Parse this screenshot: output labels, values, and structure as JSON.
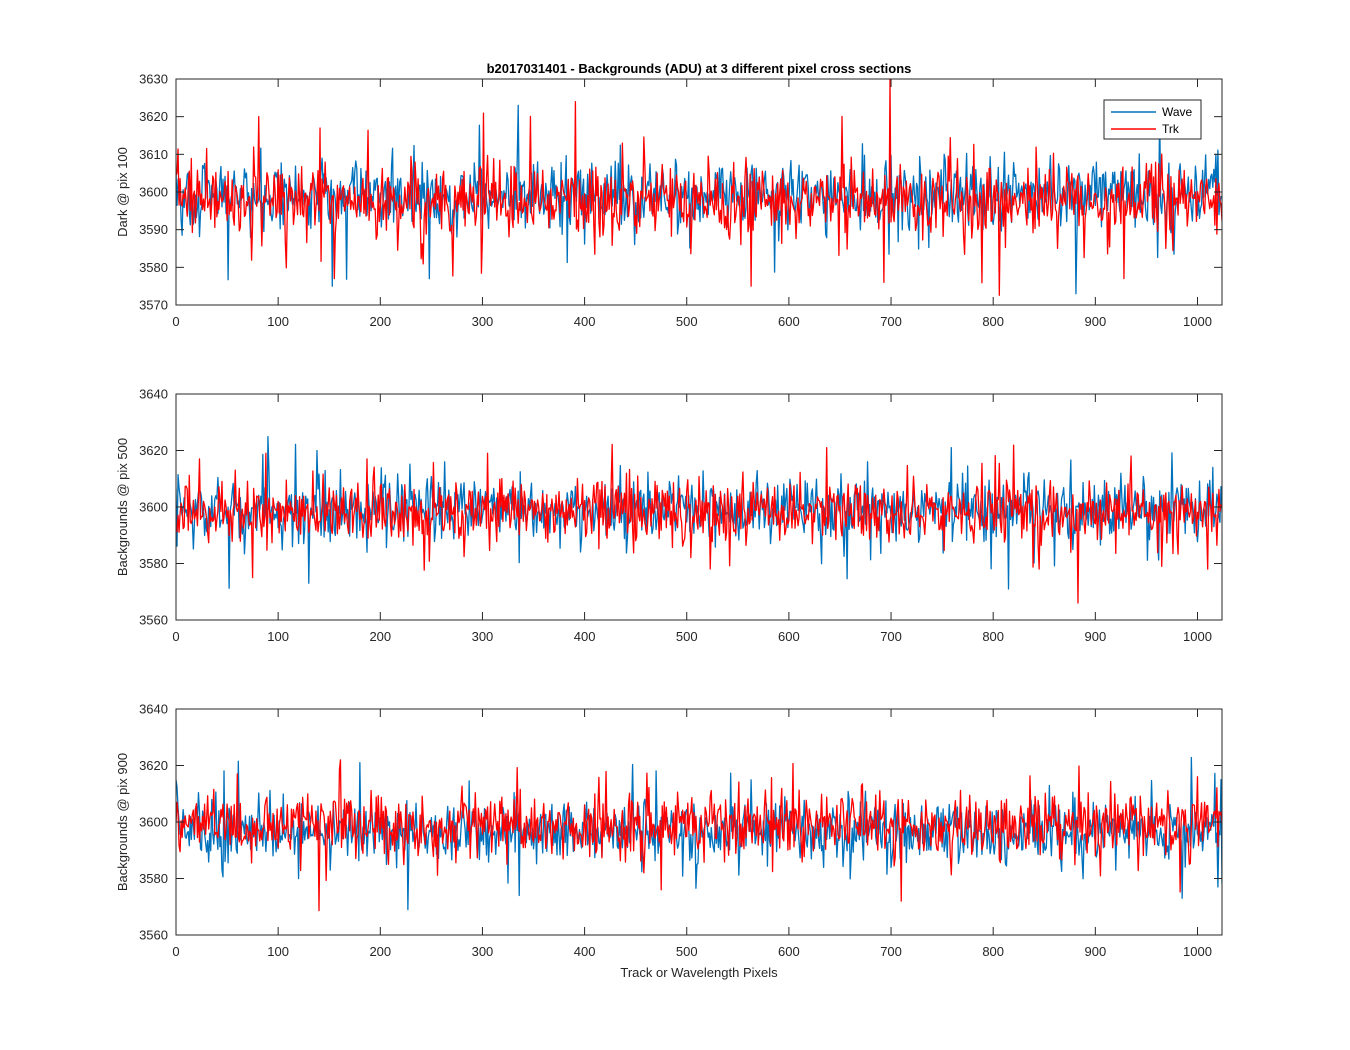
{
  "chart_data": {
    "type": "line",
    "title": "b2017031401 - Backgrounds (ADU) at 3 different pixel cross sections",
    "xlabel": "Track or Wavelength Pixels",
    "legend": {
      "placement": "top-right",
      "entries": [
        "Wave",
        "Trk"
      ]
    },
    "colors": {
      "Wave": "#0072bd",
      "Trk": "#ff0000"
    },
    "x": {
      "range": [
        0,
        1024
      ],
      "ticks": [
        0,
        100,
        200,
        300,
        400,
        500,
        600,
        700,
        800,
        900,
        1000
      ]
    },
    "note": "Each series is dense noise; representative values are generated from the stated mean, spread and listed outliers.",
    "panels": [
      {
        "ylabel": "Dark @ pix 100",
        "ylim": [
          3570,
          3630
        ],
        "yticks": [
          3570,
          3580,
          3590,
          3600,
          3610,
          3620,
          3630
        ],
        "series": [
          {
            "name": "Wave",
            "mean": 3599,
            "spread": 5.5,
            "outliers": [
              [
                153,
                3575
              ],
              [
                248,
                3577
              ],
              [
                335,
                3623
              ],
              [
                881,
                3573
              ],
              [
                963,
                3621
              ],
              [
                1018,
                3610
              ]
            ]
          },
          {
            "name": "Trk",
            "mean": 3598,
            "spread": 5.5,
            "outliers": [
              [
                81,
                3620
              ],
              [
                141,
                3617
              ],
              [
                155,
                3577
              ],
              [
                391,
                3624
              ],
              [
                563,
                3575
              ],
              [
                699,
                3630
              ],
              [
                693,
                3576
              ],
              [
                928,
                3577
              ]
            ]
          }
        ]
      },
      {
        "ylabel": "Backgrounds @ pix 500",
        "ylim": [
          3560,
          3640
        ],
        "yticks": [
          3560,
          3580,
          3600,
          3620,
          3640
        ],
        "series": [
          {
            "name": "Wave",
            "mean": 3599,
            "spread": 6.5,
            "outliers": [
              [
                130,
                3573
              ],
              [
                138,
                3620
              ],
              [
                759,
                3621
              ],
              [
                815,
                3571
              ],
              [
                1015,
                3614
              ]
            ]
          },
          {
            "name": "Trk",
            "mean": 3598,
            "spread": 6.5,
            "outliers": [
              [
                75,
                3575
              ],
              [
                88,
                3619
              ],
              [
                305,
                3619
              ],
              [
                637,
                3621
              ],
              [
                883,
                3566
              ],
              [
                1010,
                3578
              ]
            ]
          }
        ]
      },
      {
        "ylabel": "Backgrounds @ pix 900",
        "ylim": [
          3560,
          3640
        ],
        "yticks": [
          3560,
          3580,
          3600,
          3620,
          3640
        ],
        "series": [
          {
            "name": "Wave",
            "mean": 3597,
            "spread": 6.5,
            "outliers": [
              [
                180,
                3621
              ],
              [
                227,
                3569
              ],
              [
                336,
                3574
              ],
              [
                1023,
                3615
              ],
              [
                1020,
                3577
              ],
              [
                985,
                3573
              ]
            ]
          },
          {
            "name": "Trk",
            "mean": 3599,
            "spread": 6.5,
            "outliers": [
              [
                161,
                3622
              ],
              [
                60,
                3617
              ],
              [
                475,
                3576
              ],
              [
                710,
                3572
              ],
              [
                1000,
                3616
              ]
            ]
          }
        ]
      }
    ]
  }
}
